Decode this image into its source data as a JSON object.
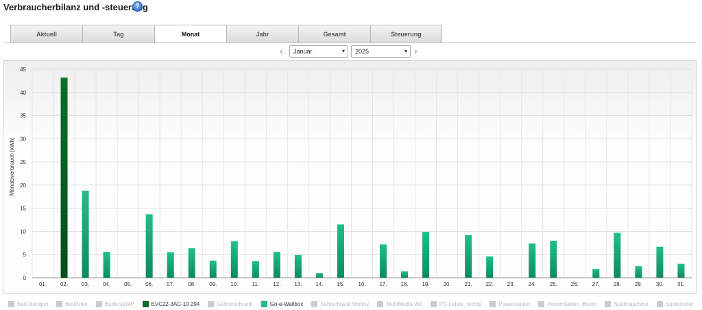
{
  "header": {
    "title": "Verbraucherbilanz und -steuerung",
    "help_glyph": "?"
  },
  "tabs": [
    {
      "label": "Aktuell",
      "active": false
    },
    {
      "label": "Tag",
      "active": false
    },
    {
      "label": "Monat",
      "active": true
    },
    {
      "label": "Jahr",
      "active": false
    },
    {
      "label": "Gesamt",
      "active": false
    },
    {
      "label": "Steuerung",
      "active": false
    }
  ],
  "period": {
    "month": "Januar",
    "year": "2025",
    "prev_glyph": "‹",
    "next_glyph": "›",
    "dropdown_glyph": "▾"
  },
  "chart_data": {
    "type": "bar",
    "ylabel": "Monatsverbrauch [kWh]",
    "ylim": [
      0,
      45
    ],
    "yticks": [
      0,
      5,
      10,
      15,
      20,
      25,
      30,
      35,
      40,
      45
    ],
    "grid": true,
    "categories": [
      "01.",
      "02.",
      "03.",
      "04.",
      "05.",
      "06.",
      "07.",
      "08.",
      "09.",
      "10.",
      "11.",
      "12.",
      "13.",
      "14.",
      "15.",
      "16.",
      "17.",
      "18.",
      "19.",
      "20.",
      "21.",
      "22.",
      "23.",
      "24.",
      "25.",
      "26.",
      "27.",
      "28.",
      "29.",
      "30.",
      "31."
    ],
    "series": [
      {
        "name": "EVC22-3AC-10 294",
        "color": "#0b6e2a",
        "values": [
          0,
          43.2,
          0,
          0,
          0,
          0,
          0,
          0,
          0,
          0,
          0,
          0,
          0,
          0,
          0,
          0,
          0,
          0,
          0,
          0,
          0,
          0,
          0,
          0,
          0,
          0,
          0,
          0,
          0,
          0,
          0
        ]
      },
      {
        "name": "Go-e-Wallbox",
        "color": "#1fbf8a",
        "values": [
          0,
          0,
          18.8,
          5.6,
          0,
          13.7,
          5.5,
          6.4,
          3.7,
          7.9,
          3.6,
          5.6,
          4.9,
          1.0,
          11.5,
          0,
          7.2,
          1.4,
          9.9,
          0,
          9.2,
          4.6,
          0,
          7.4,
          8.0,
          0,
          1.9,
          9.7,
          2.5,
          6.7,
          3.0
        ]
      }
    ],
    "legend_position": "bottom"
  },
  "legend": [
    {
      "name": "Bett Juergen",
      "active": false,
      "color": "#cccccc"
    },
    {
      "name": "BettAnke",
      "active": false,
      "color": "#cccccc"
    },
    {
      "name": "BuderusWP",
      "active": false,
      "color": "#cccccc"
    },
    {
      "name": "EVC22-3AC-10 294",
      "active": true,
      "color": "#0b6e2a"
    },
    {
      "name": "Gefrierschrank",
      "active": false,
      "color": "#cccccc"
    },
    {
      "name": "Go-e-Wallbox",
      "active": true,
      "color": "#1fbf8a"
    },
    {
      "name": "Kühlschrank Wohnz",
      "active": false,
      "color": "#cccccc"
    },
    {
      "name": "MultiMedia Wz",
      "active": false,
      "color": "#cccccc"
    },
    {
      "name": "PC-Leiste_rechts",
      "active": false,
      "color": "#cccccc"
    },
    {
      "name": "Powerstation",
      "active": false,
      "color": "#cccccc"
    },
    {
      "name": "Powerstation_Buero",
      "active": false,
      "color": "#cccccc"
    },
    {
      "name": "Spülmaschine",
      "active": false,
      "color": "#cccccc"
    },
    {
      "name": "Sunbooster",
      "active": false,
      "color": "#cccccc"
    }
  ]
}
